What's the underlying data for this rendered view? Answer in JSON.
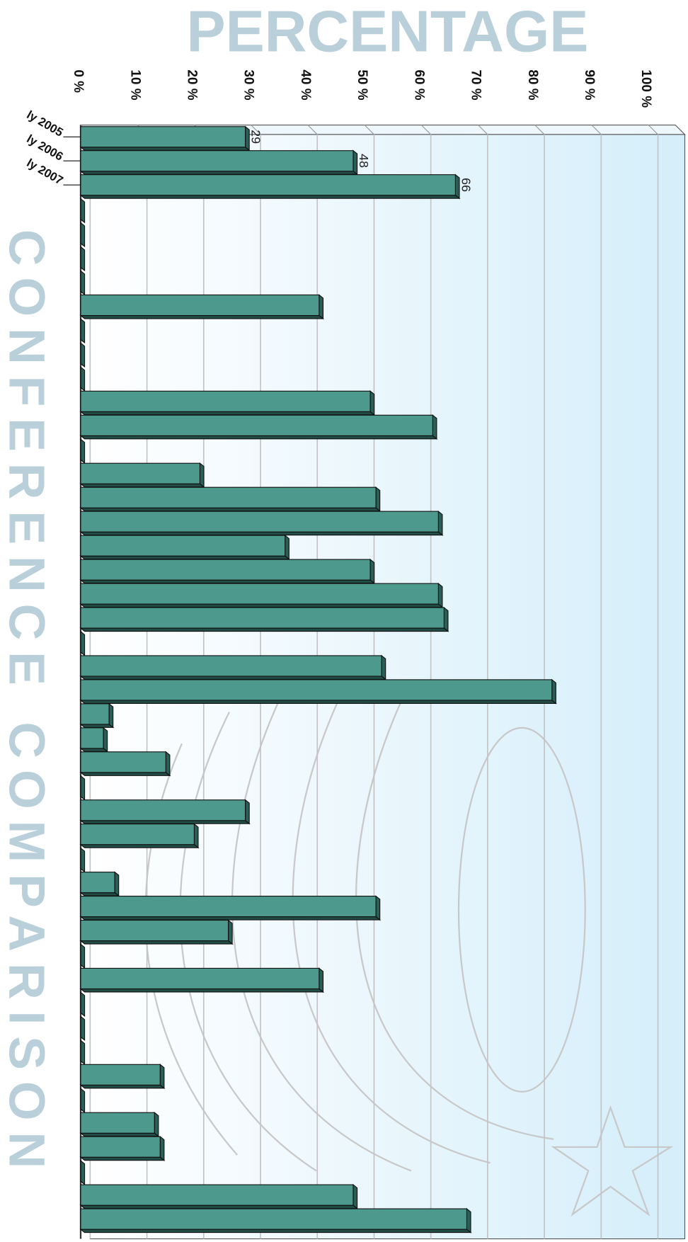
{
  "chart_data": {
    "type": "bar",
    "title": "PERCENTAGE",
    "subtitle": "CONFERENCE COMPARISON",
    "orientation": "horizontal",
    "categories": [
      "ly 2005",
      "ly 2006",
      "ly 2007",
      null,
      null,
      null,
      null,
      null,
      null,
      null,
      null,
      null,
      null,
      null,
      null,
      null,
      null,
      null,
      null,
      null,
      null,
      null,
      null,
      null,
      null,
      null,
      null,
      null,
      null,
      null,
      null,
      null,
      null,
      null,
      null,
      null,
      null,
      null,
      null,
      null,
      null,
      null,
      null,
      null,
      null,
      null
    ],
    "values": [
      29,
      48,
      66,
      0,
      0,
      0,
      0,
      42,
      0,
      0,
      0,
      51,
      62,
      0,
      21,
      52,
      63,
      36,
      51,
      63,
      64,
      0,
      53,
      83,
      5,
      4,
      15,
      0,
      29,
      20,
      0,
      6,
      52,
      26,
      0,
      42,
      0,
      0,
      0,
      14,
      0,
      13,
      14,
      0,
      48,
      68
    ],
    "value_labels": [
      "29",
      "48",
      "66",
      null,
      null,
      null,
      null,
      null,
      null,
      null,
      null,
      null,
      null,
      null,
      null,
      null,
      null,
      null,
      null,
      null,
      null,
      null,
      null,
      null,
      null,
      null,
      null,
      null,
      null,
      null,
      null,
      null,
      null,
      null,
      null,
      null,
      null,
      null,
      null,
      null,
      null,
      null,
      null,
      null,
      null,
      null
    ],
    "color": "#4e998d",
    "xlim": [
      0,
      100
    ],
    "xticks": [
      {
        "value": 0,
        "label": "0 %"
      },
      {
        "value": 10,
        "label": "10 %"
      },
      {
        "value": 20,
        "label": "20 %"
      },
      {
        "value": 30,
        "label": "30 %"
      },
      {
        "value": 40,
        "label": "40 %"
      },
      {
        "value": 50,
        "label": "50 %"
      },
      {
        "value": 60,
        "label": "60 %"
      },
      {
        "value": 70,
        "label": "70 %"
      },
      {
        "value": 80,
        "label": "80 %"
      },
      {
        "value": 90,
        "label": "90 %"
      },
      {
        "value": 100,
        "label": "100 %"
      }
    ],
    "grid": true
  }
}
